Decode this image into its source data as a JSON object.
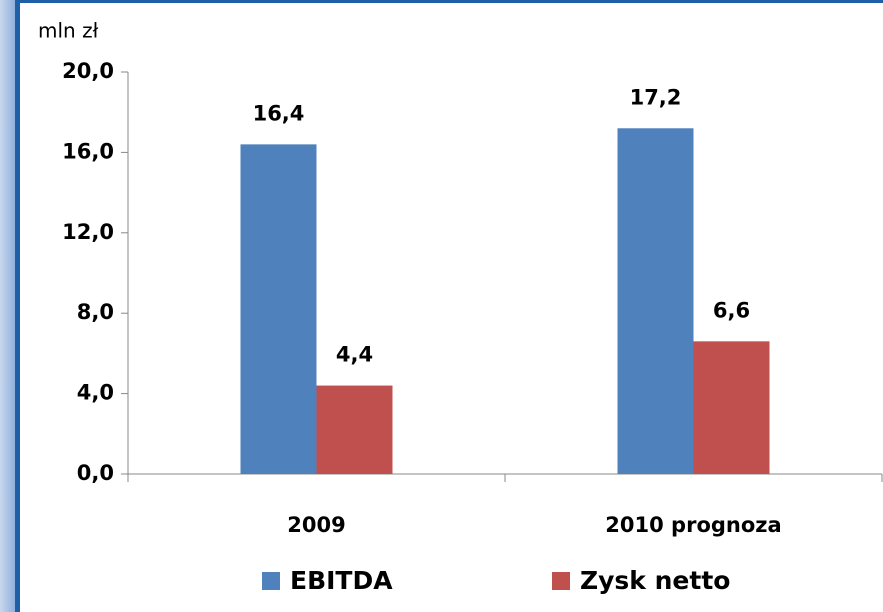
{
  "chart_data": {
    "type": "bar",
    "axis_label": "mln zł",
    "categories": [
      "2009",
      "2010 prognoza"
    ],
    "series": [
      {
        "name": "EBITDA",
        "color": "#4f81bd",
        "values": [
          16.4,
          17.2
        ],
        "value_labels": [
          "16,4",
          "17,2"
        ]
      },
      {
        "name": "Zysk netto",
        "color": "#c0504d",
        "values": [
          4.4,
          6.6
        ],
        "value_labels": [
          "4,4",
          "6,6"
        ]
      }
    ],
    "ylim": [
      0,
      20
    ],
    "yticks": [
      {
        "value": 0,
        "label": "0,0"
      },
      {
        "value": 4,
        "label": "4,0"
      },
      {
        "value": 8,
        "label": "8,0"
      },
      {
        "value": 12,
        "label": "12,0"
      },
      {
        "value": 16,
        "label": "16,0"
      },
      {
        "value": 20,
        "label": "20,0"
      }
    ],
    "legend": "bottom"
  }
}
